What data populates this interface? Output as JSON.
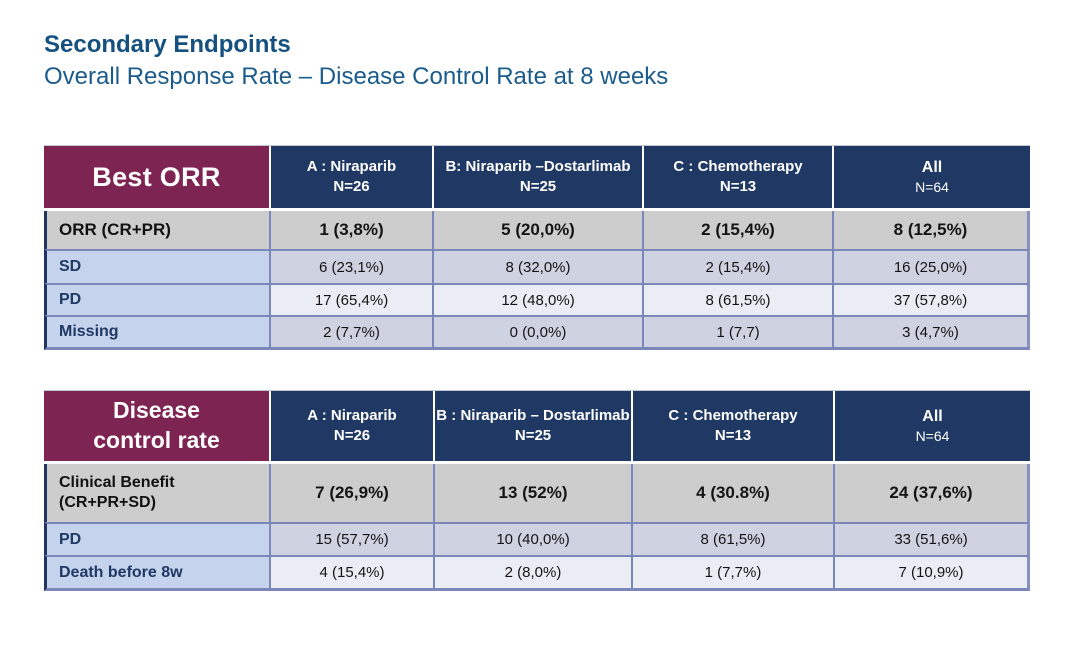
{
  "slide": {
    "title": "Secondary Endpoints",
    "subtitle": "Overall Response Rate – Disease Control Rate at 8 weeks"
  },
  "colors": {
    "title_blue": "#14517f",
    "subtitle_blue": "#1b5c8c",
    "header_maroon": "#7e2453",
    "header_navy": "#1f3864",
    "label_column_blue": "#c5d3ed",
    "gray_row": "#cdcdcd",
    "lavender_row": "#cfd2e0",
    "white_row": "#ebedf4",
    "grid_border": "#7b87b9",
    "outer_left_border": "#23335f"
  },
  "tables": [
    {
      "name": "best_orr",
      "corner_lines": [
        "Best ORR"
      ],
      "columns": [
        {
          "label": "A : Niraparib",
          "n": "N=26"
        },
        {
          "label": "B: Niraparib –Dostarlimab",
          "n": "N=25"
        },
        {
          "label": "C : Chemotherapy",
          "n": "N=13"
        },
        {
          "label": "All",
          "n": "N=64"
        }
      ],
      "rows": [
        {
          "label": "ORR (CR+PR)",
          "values": [
            "1 (3,8%)",
            "5 (20,0%)",
            "2 (15,4%)",
            "8 (12,5%)"
          ]
        },
        {
          "label": "SD",
          "values": [
            "6 (23,1%)",
            "8 (32,0%)",
            "2 (15,4%)",
            "16 (25,0%)"
          ]
        },
        {
          "label": "PD",
          "values": [
            "17 (65,4%)",
            "12 (48,0%)",
            "8 (61,5%)",
            "37 (57,8%)"
          ]
        },
        {
          "label": "Missing",
          "values": [
            "2 (7,7%)",
            "0 (0,0%)",
            "1 (7,7)",
            "3 (4,7%)"
          ]
        }
      ]
    },
    {
      "name": "disease_control_rate",
      "corner_lines": [
        "Disease",
        "control rate"
      ],
      "columns": [
        {
          "label": "A : Niraparib",
          "n": "N=26"
        },
        {
          "label": "B : Niraparib – Dostarlimab",
          "n": "N=25"
        },
        {
          "label": "C : Chemotherapy",
          "n": "N=13"
        },
        {
          "label": "All",
          "n": "N=64"
        }
      ],
      "rows": [
        {
          "label": "Clinical Benefit (CR+PR+SD)",
          "label_lines": [
            "Clinical Benefit",
            "(CR+PR+SD)"
          ],
          "values": [
            "7 (26,9%)",
            "13 (52%)",
            "4 (30.8%)",
            "24 (37,6%)"
          ]
        },
        {
          "label": "PD",
          "values": [
            "15 (57,7%)",
            "10 (40,0%)",
            "8 (61,5%)",
            "33 (51,6%)"
          ]
        },
        {
          "label": "Death before 8w",
          "values": [
            "4 (15,4%)",
            "2 (8,0%)",
            "1 (7,7%)",
            "7 (10,9%)"
          ]
        }
      ]
    }
  ]
}
